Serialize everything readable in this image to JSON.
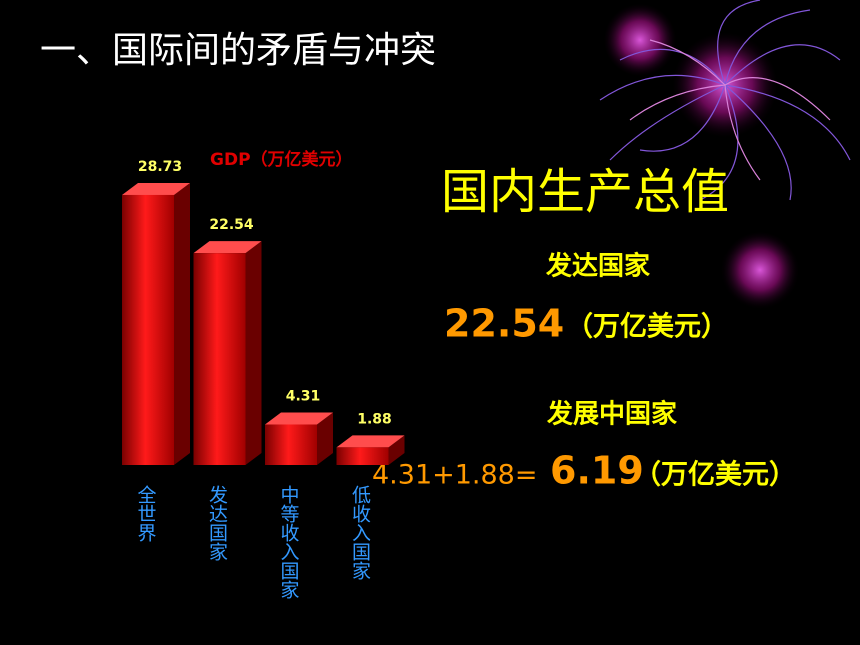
{
  "slide": {
    "title": "一、国际间的矛盾与冲突",
    "heading": "国内生产总值",
    "developed": {
      "label": "发达国家",
      "value": "22.54",
      "unit": "（万亿美元）"
    },
    "developing": {
      "label": "发展中国家",
      "expression": "4.31+1.88=",
      "value": "6.19",
      "unit": "（万亿美元）"
    }
  },
  "chart_data": {
    "type": "bar3d",
    "title": "GDP（万亿美元）",
    "categories": [
      "全世界",
      "发达国家",
      "中等收入国家",
      "低收入国家"
    ],
    "values": [
      28.73,
      22.54,
      4.31,
      1.88
    ],
    "color": "#e00000"
  }
}
